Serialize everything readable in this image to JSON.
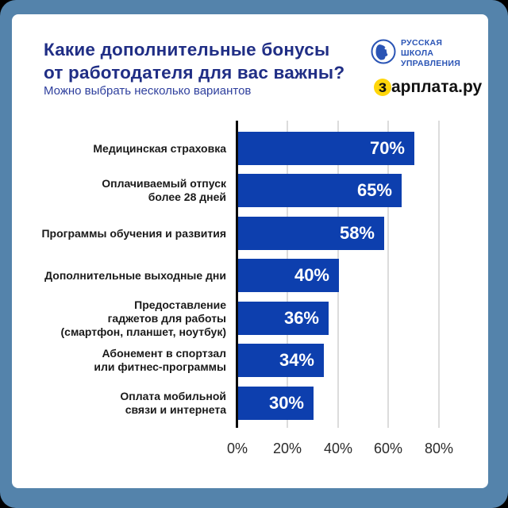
{
  "header": {
    "title": "Какие дополнительные бонусы\nот работодателя для вас важны?",
    "subtitle": "Можно выбрать несколько вариантов"
  },
  "logos": {
    "rsu_line1": "РУССКАЯ",
    "rsu_line2": "ШКОЛА",
    "rsu_line3": "УПРАВЛЕНИЯ",
    "zarplata_first_letter": "з",
    "zarplata_rest": "арплата.ру"
  },
  "colors": {
    "frame": "#5483ab",
    "card": "#ffffff",
    "title_text": "#202e85",
    "subtitle_text": "#2e3f9d",
    "bar": "#0d3fae",
    "bar_value_text": "#ffffff",
    "axis_line": "#0a0a0a",
    "gridline": "#dcdcdc",
    "category_text": "#1a1a1a",
    "tick_text": "#2a2a2a",
    "rsu_blue": "#2a54b5",
    "zarplata_yellow": "#ffd60a"
  },
  "chart_data": {
    "type": "bar",
    "orientation": "horizontal",
    "title": "Какие дополнительные бонусы от работодателя для вас важны?",
    "subtitle": "Можно выбрать несколько вариантов",
    "categories": [
      "Медицинская страховка",
      "Оплачиваемый отпуск\nболее 28 дней",
      "Программы обучения и развития",
      "Дополнительные выходные дни",
      "Предоставление\nгаджетов для работы\n(смартфон, планшет, ноутбук)",
      "Абонемент в спортзал\nили фитнес-программы",
      "Оплата мобильной\nсвязи и интернета"
    ],
    "values": [
      70,
      65,
      58,
      40,
      36,
      34,
      30
    ],
    "value_labels": [
      "70%",
      "65%",
      "58%",
      "40%",
      "36%",
      "34%",
      "30%"
    ],
    "x_ticks": [
      "0%",
      "20%",
      "40%",
      "60%",
      "80%"
    ],
    "x_tick_values": [
      0,
      20,
      40,
      60,
      80
    ],
    "xlim": [
      0,
      100
    ],
    "grid": "vertical gridlines every 20%",
    "legend": "none"
  }
}
